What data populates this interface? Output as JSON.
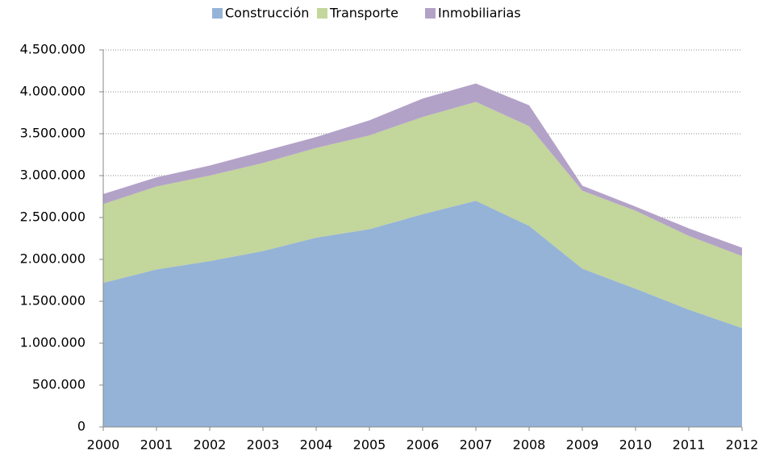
{
  "chart_data": {
    "type": "area",
    "stacked": true,
    "categories": [
      "2000",
      "2001",
      "2002",
      "2003",
      "2004",
      "2005",
      "2006",
      "2007",
      "2008",
      "2009",
      "2010",
      "2011",
      "2012"
    ],
    "series": [
      {
        "name": "Construcción",
        "color": "#95b3d7",
        "values": [
          1720000,
          1880000,
          1980000,
          2100000,
          2260000,
          2360000,
          2540000,
          2700000,
          2400000,
          1890000,
          1650000,
          1400000,
          1180000
        ]
      },
      {
        "name": "Transporte",
        "color": "#c3d69b",
        "values": [
          940000,
          990000,
          1020000,
          1050000,
          1070000,
          1120000,
          1160000,
          1180000,
          1190000,
          930000,
          930000,
          880000,
          860000
        ]
      },
      {
        "name": "Inmobiliarias",
        "color": "#b3a2c7",
        "values": [
          120000,
          110000,
          120000,
          140000,
          130000,
          180000,
          220000,
          220000,
          250000,
          60000,
          50000,
          90000,
          100000
        ]
      }
    ],
    "ylim": [
      0,
      4500000
    ],
    "yticks": [
      0,
      {
        "value": 500000,
        "label": "500.000"
      },
      {
        "value": 1000000,
        "label": "1.000.000"
      },
      {
        "value": 1500000,
        "label": "1.500.000"
      },
      {
        "value": 2000000,
        "label": "2.000.000"
      },
      {
        "value": 2500000,
        "label": "2.500.000"
      },
      {
        "value": 3000000,
        "label": "3.000.000"
      },
      {
        "value": 3500000,
        "label": "3.500.000"
      },
      {
        "value": 4000000,
        "label": "4.000.000"
      },
      {
        "value": 4500000,
        "label": "4.500.000"
      }
    ],
    "grid": true,
    "legend": "top"
  }
}
